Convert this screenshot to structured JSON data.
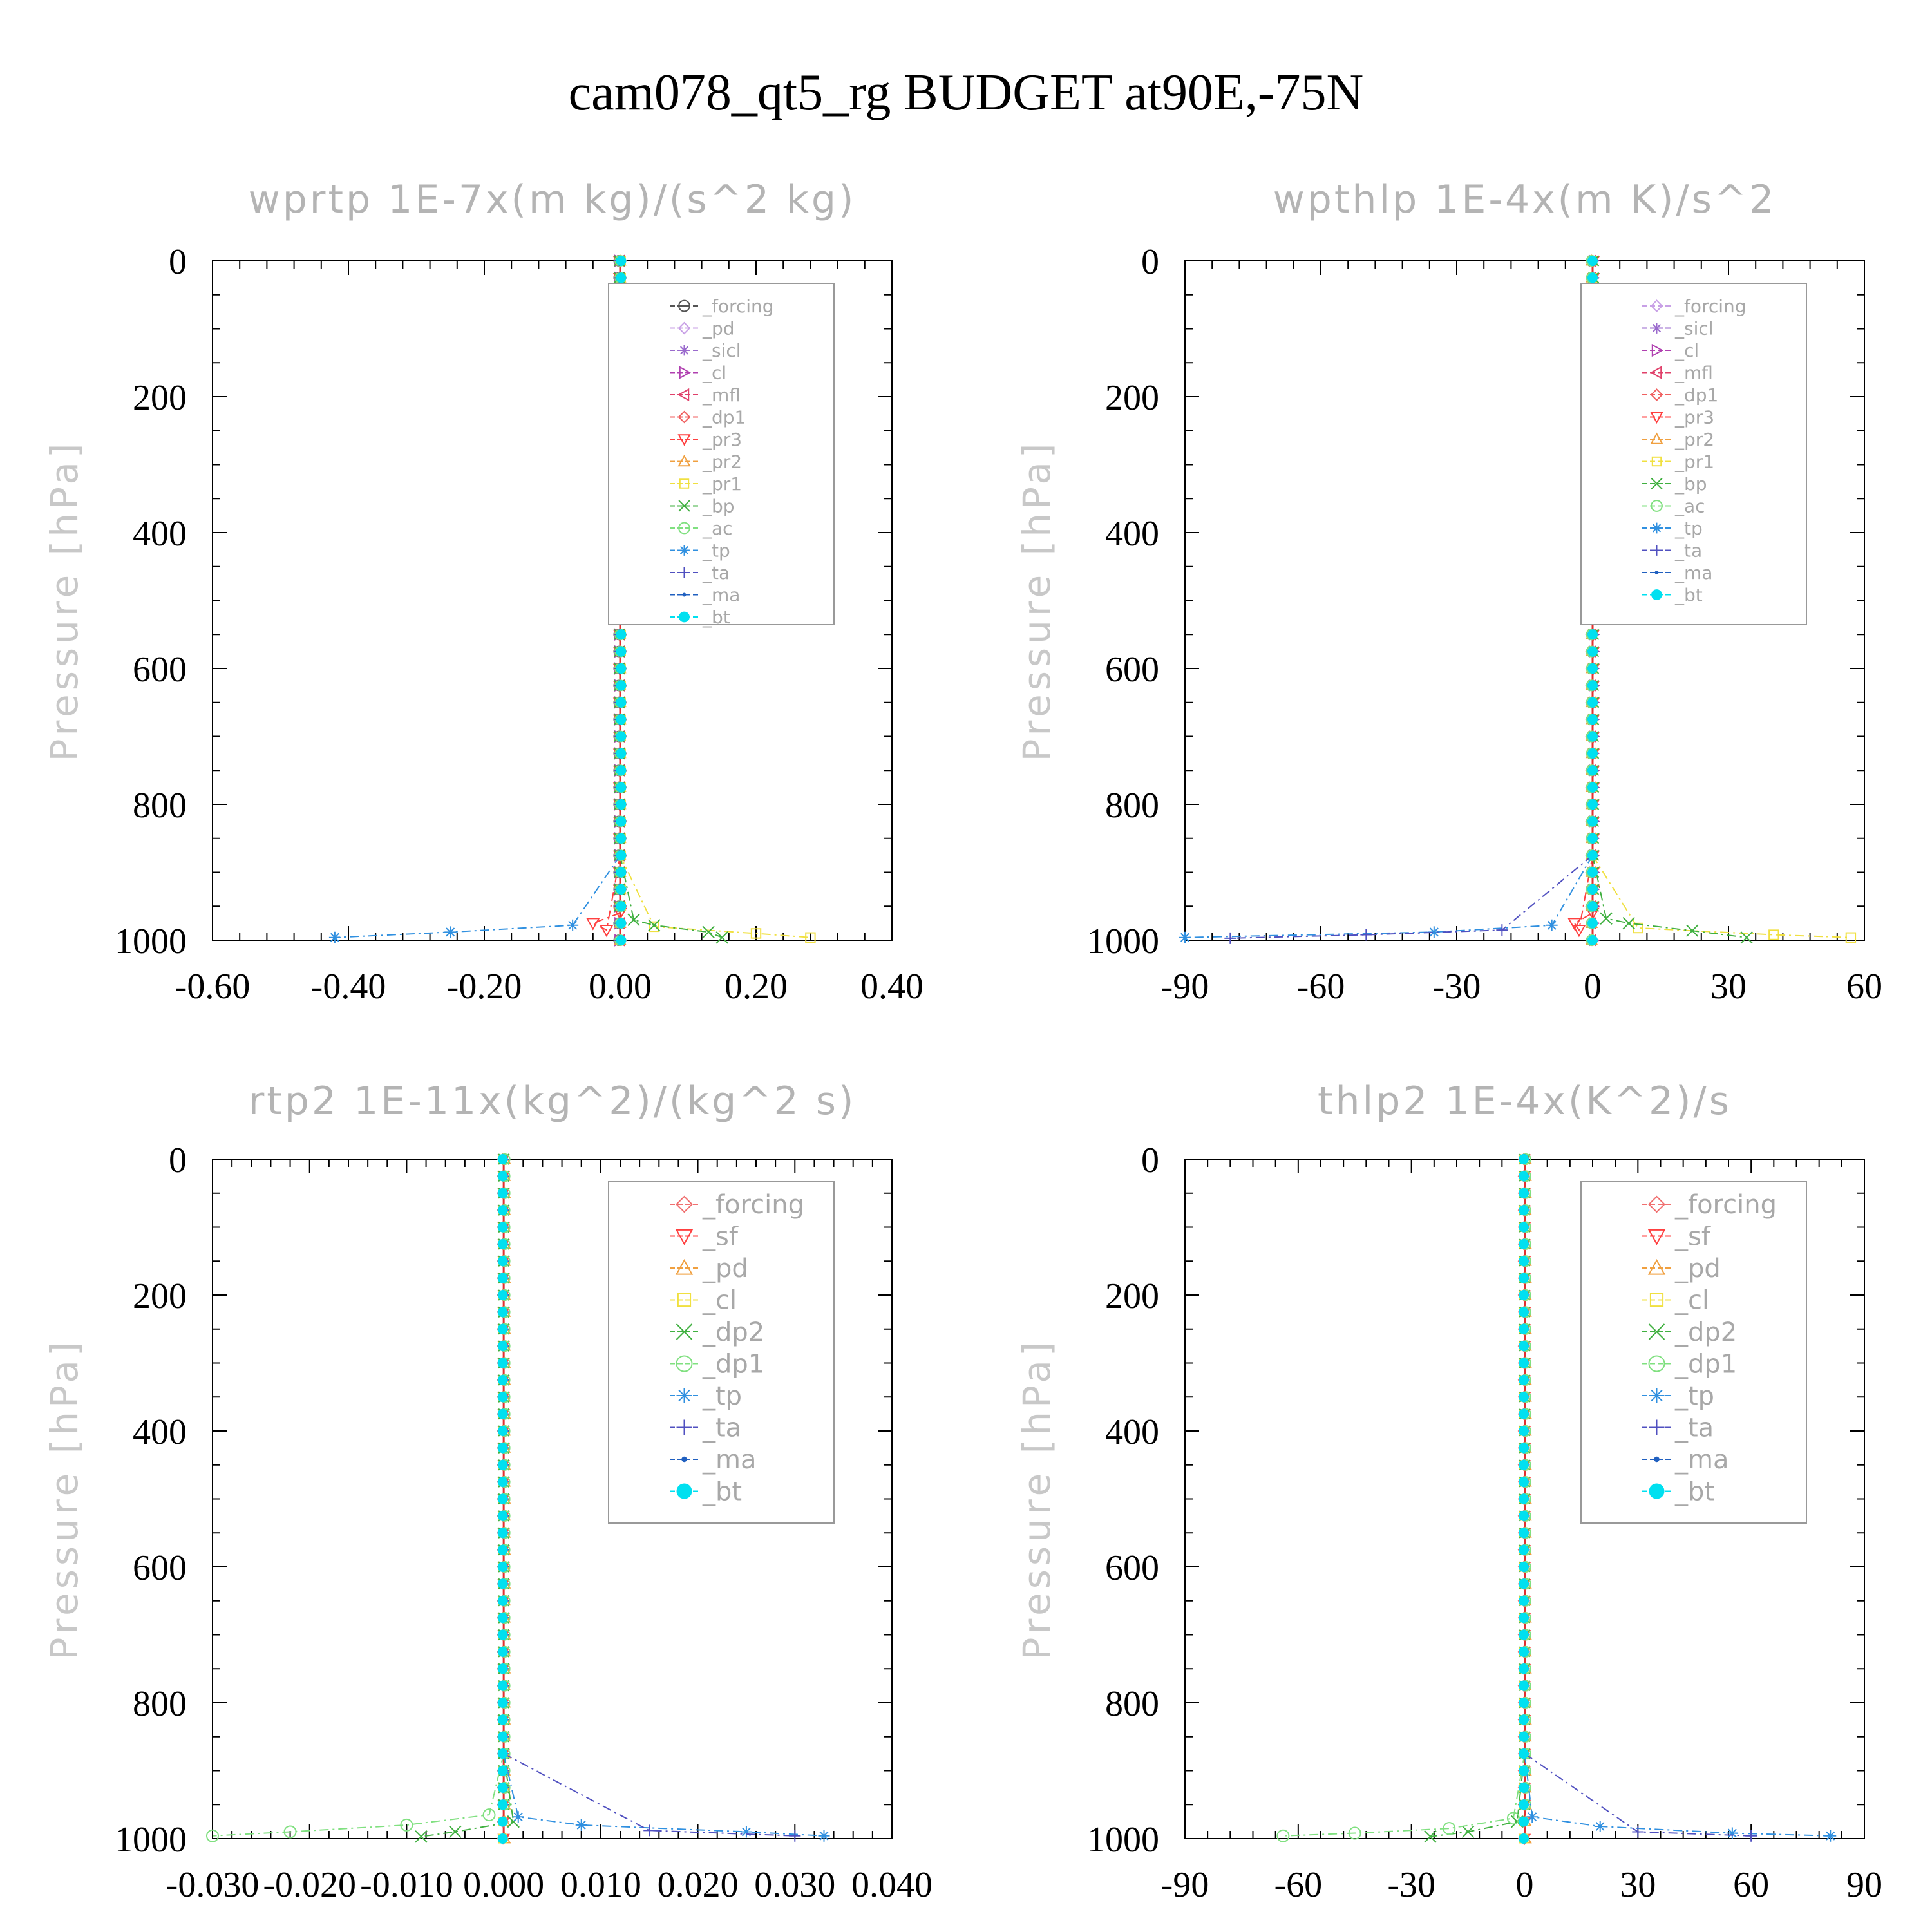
{
  "page": {
    "title": "cam078_qt5_rg  BUDGET at90E,-75N"
  },
  "chart_data": [
    {
      "type": "line",
      "title": "wprtp  1E-7x(m kg)/(s^2 kg)",
      "ylabel": "Pressure [hPa]",
      "xlim": [
        -0.6,
        0.4
      ],
      "ylim": [
        1000,
        0
      ],
      "y_ticks": [
        0,
        200,
        400,
        600,
        800,
        1000
      ],
      "x_ticks": [
        "-0.60",
        "-0.40",
        "-0.20",
        "0.00",
        "0.20",
        "0.40"
      ],
      "x_tick_values": [
        -0.6,
        -0.4,
        -0.2,
        0.0,
        0.2,
        0.4
      ],
      "legend": {
        "position": "top-right"
      },
      "series": [
        {
          "name": "_forcing",
          "color": "#555555",
          "marker": "circle-dot",
          "surface": []
        },
        {
          "name": "_pd",
          "color": "#c8a0e6",
          "marker": "diamond",
          "surface": []
        },
        {
          "name": "_sicl",
          "color": "#9a6acd",
          "marker": "star",
          "surface": []
        },
        {
          "name": "_cl",
          "color": "#b040b0",
          "marker": "tri-right",
          "surface": []
        },
        {
          "name": "_mfl",
          "color": "#e0406a",
          "marker": "tri-left",
          "surface": []
        },
        {
          "name": "_dp1",
          "color": "#f06060",
          "marker": "diamond",
          "surface": []
        },
        {
          "name": "_pr3",
          "color": "#ff4040",
          "marker": "tri-down",
          "surface": [
            [
              -0.02,
              985
            ],
            [
              -0.04,
              975
            ],
            [
              0,
              960
            ]
          ]
        },
        {
          "name": "_pr2",
          "color": "#f0a040",
          "marker": "tri-up",
          "surface": []
        },
        {
          "name": "_pr1",
          "color": "#f0e040",
          "marker": "square",
          "surface": [
            [
              0.05,
              980
            ],
            [
              0.2,
              990
            ],
            [
              0.28,
              996
            ]
          ]
        },
        {
          "name": "_bp",
          "color": "#40b040",
          "marker": "x",
          "surface": [
            [
              0.02,
              970
            ],
            [
              0.05,
              978
            ],
            [
              0.13,
              988
            ],
            [
              0.15,
              996
            ]
          ]
        },
        {
          "name": "_ac",
          "color": "#80e080",
          "marker": "circle",
          "surface": []
        },
        {
          "name": "_tp",
          "color": "#3090e0",
          "marker": "asterisk",
          "surface": [
            [
              -0.07,
              978
            ],
            [
              -0.25,
              988
            ],
            [
              -0.42,
              996
            ]
          ]
        },
        {
          "name": "_ta",
          "color": "#5050c0",
          "marker": "plus",
          "surface": []
        },
        {
          "name": "_ma",
          "color": "#2060c0",
          "marker": "dot",
          "surface": []
        },
        {
          "name": "_bt",
          "color": "#00e0f0",
          "marker": "filled-circle",
          "surface": []
        }
      ]
    },
    {
      "type": "line",
      "title": "wpthlp  1E-4x(m K)/s^2",
      "ylabel": "Pressure [hPa]",
      "xlim": [
        -90,
        60
      ],
      "ylim": [
        1000,
        0
      ],
      "y_ticks": [
        0,
        200,
        400,
        600,
        800,
        1000
      ],
      "x_ticks": [
        "-90",
        "-60",
        "-30",
        "0",
        "30",
        "60"
      ],
      "x_tick_values": [
        -90,
        -60,
        -30,
        0,
        30,
        60
      ],
      "legend": {
        "position": "top-right"
      },
      "series": [
        {
          "name": "_forcing",
          "color": "#c8a0e6",
          "marker": "diamond",
          "surface": []
        },
        {
          "name": "_sicl",
          "color": "#9a6acd",
          "marker": "star",
          "surface": []
        },
        {
          "name": "_cl",
          "color": "#b040b0",
          "marker": "tri-right",
          "surface": []
        },
        {
          "name": "_mfl",
          "color": "#e0406a",
          "marker": "tri-left",
          "surface": []
        },
        {
          "name": "_dp1",
          "color": "#f06060",
          "marker": "diamond",
          "surface": []
        },
        {
          "name": "_pr3",
          "color": "#ff4040",
          "marker": "tri-down",
          "surface": [
            [
              -3,
              985
            ],
            [
              -4,
              975
            ],
            [
              0,
              960
            ]
          ]
        },
        {
          "name": "_pr2",
          "color": "#f0a040",
          "marker": "tri-up",
          "surface": []
        },
        {
          "name": "_pr1",
          "color": "#f0e040",
          "marker": "square",
          "surface": [
            [
              10,
              982
            ],
            [
              40,
              992
            ],
            [
              57,
              996
            ]
          ]
        },
        {
          "name": "_bp",
          "color": "#40b040",
          "marker": "x",
          "surface": [
            [
              3,
              968
            ],
            [
              8,
              975
            ],
            [
              22,
              986
            ],
            [
              34,
              996
            ]
          ]
        },
        {
          "name": "_ac",
          "color": "#80e080",
          "marker": "circle",
          "surface": []
        },
        {
          "name": "_tp",
          "color": "#3090e0",
          "marker": "asterisk",
          "surface": [
            [
              -9,
              978
            ],
            [
              -35,
              988
            ],
            [
              -90,
              996
            ]
          ]
        },
        {
          "name": "_ta",
          "color": "#5050c0",
          "marker": "plus",
          "surface": [
            [
              -20,
              985
            ],
            [
              -50,
              992
            ],
            [
              -80,
              997
            ]
          ]
        },
        {
          "name": "_ma",
          "color": "#2060c0",
          "marker": "dot",
          "surface": []
        },
        {
          "name": "_bt",
          "color": "#00e0f0",
          "marker": "filled-circle",
          "surface": []
        }
      ]
    },
    {
      "type": "line",
      "title": "rtp2   1E-11x(kg^2)/(kg^2 s)",
      "ylabel": "Pressure [hPa]",
      "xlim": [
        -0.03,
        0.04
      ],
      "ylim": [
        1000,
        0
      ],
      "y_ticks": [
        0,
        200,
        400,
        600,
        800,
        1000
      ],
      "x_ticks": [
        "-0.030",
        "-0.020",
        "-0.010",
        "0.000",
        "0.010",
        "0.020",
        "0.030",
        "0.040"
      ],
      "x_tick_values": [
        -0.03,
        -0.02,
        -0.01,
        0.0,
        0.01,
        0.02,
        0.03,
        0.04
      ],
      "legend": {
        "position": "top-right"
      },
      "series": [
        {
          "name": "_forcing",
          "color": "#f07070",
          "marker": "diamond",
          "surface": []
        },
        {
          "name": "_sf",
          "color": "#ff4040",
          "marker": "tri-down",
          "surface": []
        },
        {
          "name": "_pd",
          "color": "#f0a040",
          "marker": "tri-up",
          "surface": []
        },
        {
          "name": "_cl",
          "color": "#f0e040",
          "marker": "square",
          "surface": []
        },
        {
          "name": "_dp2",
          "color": "#40b040",
          "marker": "x",
          "surface": [
            [
              0.001,
              975
            ],
            [
              -0.005,
              990
            ],
            [
              -0.0085,
              997
            ]
          ]
        },
        {
          "name": "_dp1",
          "color": "#80e080",
          "marker": "circle",
          "surface": [
            [
              -0.0015,
              965
            ],
            [
              -0.01,
              980
            ],
            [
              -0.022,
              990
            ],
            [
              -0.03,
              996
            ]
          ]
        },
        {
          "name": "_tp",
          "color": "#3090e0",
          "marker": "asterisk",
          "surface": [
            [
              0.0015,
              968
            ],
            [
              0.008,
              980
            ],
            [
              0.025,
              990
            ],
            [
              0.033,
              996
            ]
          ]
        },
        {
          "name": "_ta",
          "color": "#5050c0",
          "marker": "plus",
          "surface": [
            [
              0.015,
              988
            ],
            [
              0.03,
              996
            ]
          ]
        },
        {
          "name": "_ma",
          "color": "#2060c0",
          "marker": "dot",
          "surface": []
        },
        {
          "name": "_bt",
          "color": "#00e0f0",
          "marker": "filled-circle",
          "surface": []
        }
      ]
    },
    {
      "type": "line",
      "title": "thlp2   1E-4x(K^2)/s",
      "ylabel": "Pressure [hPa]",
      "xlim": [
        -90,
        90
      ],
      "ylim": [
        1000,
        0
      ],
      "y_ticks": [
        0,
        200,
        400,
        600,
        800,
        1000
      ],
      "x_ticks": [
        "-90",
        "-60",
        "-30",
        "0",
        "30",
        "60",
        "90"
      ],
      "x_tick_values": [
        -90,
        -60,
        -30,
        0,
        30,
        60,
        90
      ],
      "legend": {
        "position": "top-right"
      },
      "series": [
        {
          "name": "_forcing",
          "color": "#f07070",
          "marker": "diamond",
          "surface": []
        },
        {
          "name": "_sf",
          "color": "#ff4040",
          "marker": "tri-down",
          "surface": []
        },
        {
          "name": "_pd",
          "color": "#f0a040",
          "marker": "tri-up",
          "surface": []
        },
        {
          "name": "_cl",
          "color": "#f0e040",
          "marker": "square",
          "surface": []
        },
        {
          "name": "_dp2",
          "color": "#40b040",
          "marker": "x",
          "surface": [
            [
              -2,
              975
            ],
            [
              -15,
              990
            ],
            [
              -25,
              997
            ]
          ]
        },
        {
          "name": "_dp1",
          "color": "#80e080",
          "marker": "circle",
          "surface": [
            [
              -3,
              970
            ],
            [
              -20,
              985
            ],
            [
              -45,
              992
            ],
            [
              -64,
              996
            ]
          ]
        },
        {
          "name": "_tp",
          "color": "#3090e0",
          "marker": "asterisk",
          "surface": [
            [
              2,
              968
            ],
            [
              20,
              982
            ],
            [
              55,
              992
            ],
            [
              81,
              996
            ]
          ]
        },
        {
          "name": "_ta",
          "color": "#5050c0",
          "marker": "plus",
          "surface": [
            [
              30,
              990
            ],
            [
              60,
              996
            ]
          ]
        },
        {
          "name": "_ma",
          "color": "#2060c0",
          "marker": "dot",
          "surface": []
        },
        {
          "name": "_bt",
          "color": "#00e0f0",
          "marker": "filled-circle",
          "surface": []
        }
      ]
    }
  ]
}
